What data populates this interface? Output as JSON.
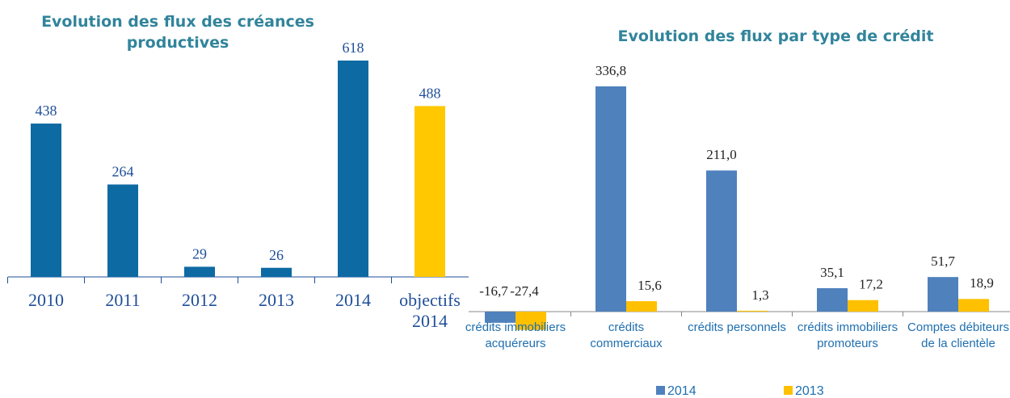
{
  "chart_data": [
    {
      "type": "bar",
      "title": "Evolution des flux des créances productives",
      "categories": [
        "2010",
        "2011",
        "2012",
        "2013",
        "2014",
        "objectifs 2014"
      ],
      "values": [
        438,
        264,
        29,
        26,
        618,
        488
      ],
      "colors": [
        "#0e6aa3",
        "#0e6aa3",
        "#0e6aa3",
        "#0e6aa3",
        "#0e6aa3",
        "#ffc800"
      ]
    },
    {
      "type": "grouped-bar",
      "title": "Evolution des flux par type de crédit",
      "categories": [
        "crédits immobiliers acquéreurs",
        "crédits commerciaux",
        "crédits personnels",
        "crédits immobiliers promoteurs",
        "Comptes débiteurs de la clientèle"
      ],
      "series": [
        {
          "name": "2014",
          "color": "#4f81bd",
          "values": [
            -16.7,
            336.8,
            211.0,
            35.1,
            51.7
          ],
          "value_labels": [
            "-16,7",
            "336,8",
            "211,0",
            "35,1",
            "51,7"
          ]
        },
        {
          "name": "2013",
          "color": "#ffc000",
          "values": [
            -27.4,
            15.6,
            1.3,
            17.2,
            18.9
          ],
          "value_labels": [
            "-27,4",
            "15,6",
            "1,3",
            "17,2",
            "18,9"
          ]
        }
      ]
    }
  ]
}
